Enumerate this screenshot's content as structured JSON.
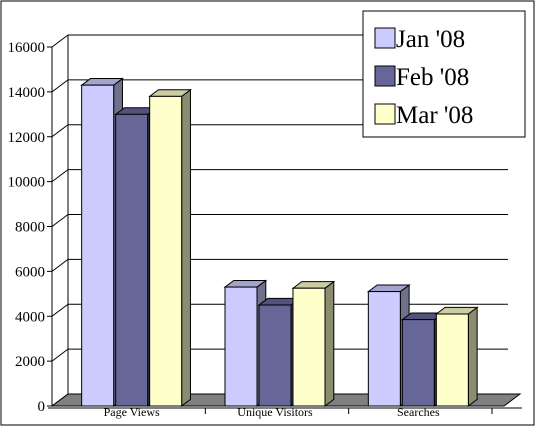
{
  "chart_data": {
    "type": "bar",
    "title": "",
    "xlabel": "",
    "ylabel": "",
    "categories": [
      "Page Views",
      "Unique Visitors",
      "Searches"
    ],
    "series": [
      {
        "name": "Jan '08",
        "color": "#ccccff",
        "values": [
          14300,
          5300,
          5100
        ]
      },
      {
        "name": "Feb '08",
        "color": "#666699",
        "values": [
          13000,
          4500,
          3850
        ]
      },
      {
        "name": "Mar '08",
        "color": "#ffffcc",
        "values": [
          13800,
          5250,
          4100
        ]
      }
    ],
    "ylim": [
      0,
      16000
    ],
    "yticks": [
      "0",
      "2000",
      "4000",
      "6000",
      "8000",
      "10000",
      "12000",
      "14000",
      "16000"
    ],
    "grid": true,
    "legend_position": "top-right"
  }
}
